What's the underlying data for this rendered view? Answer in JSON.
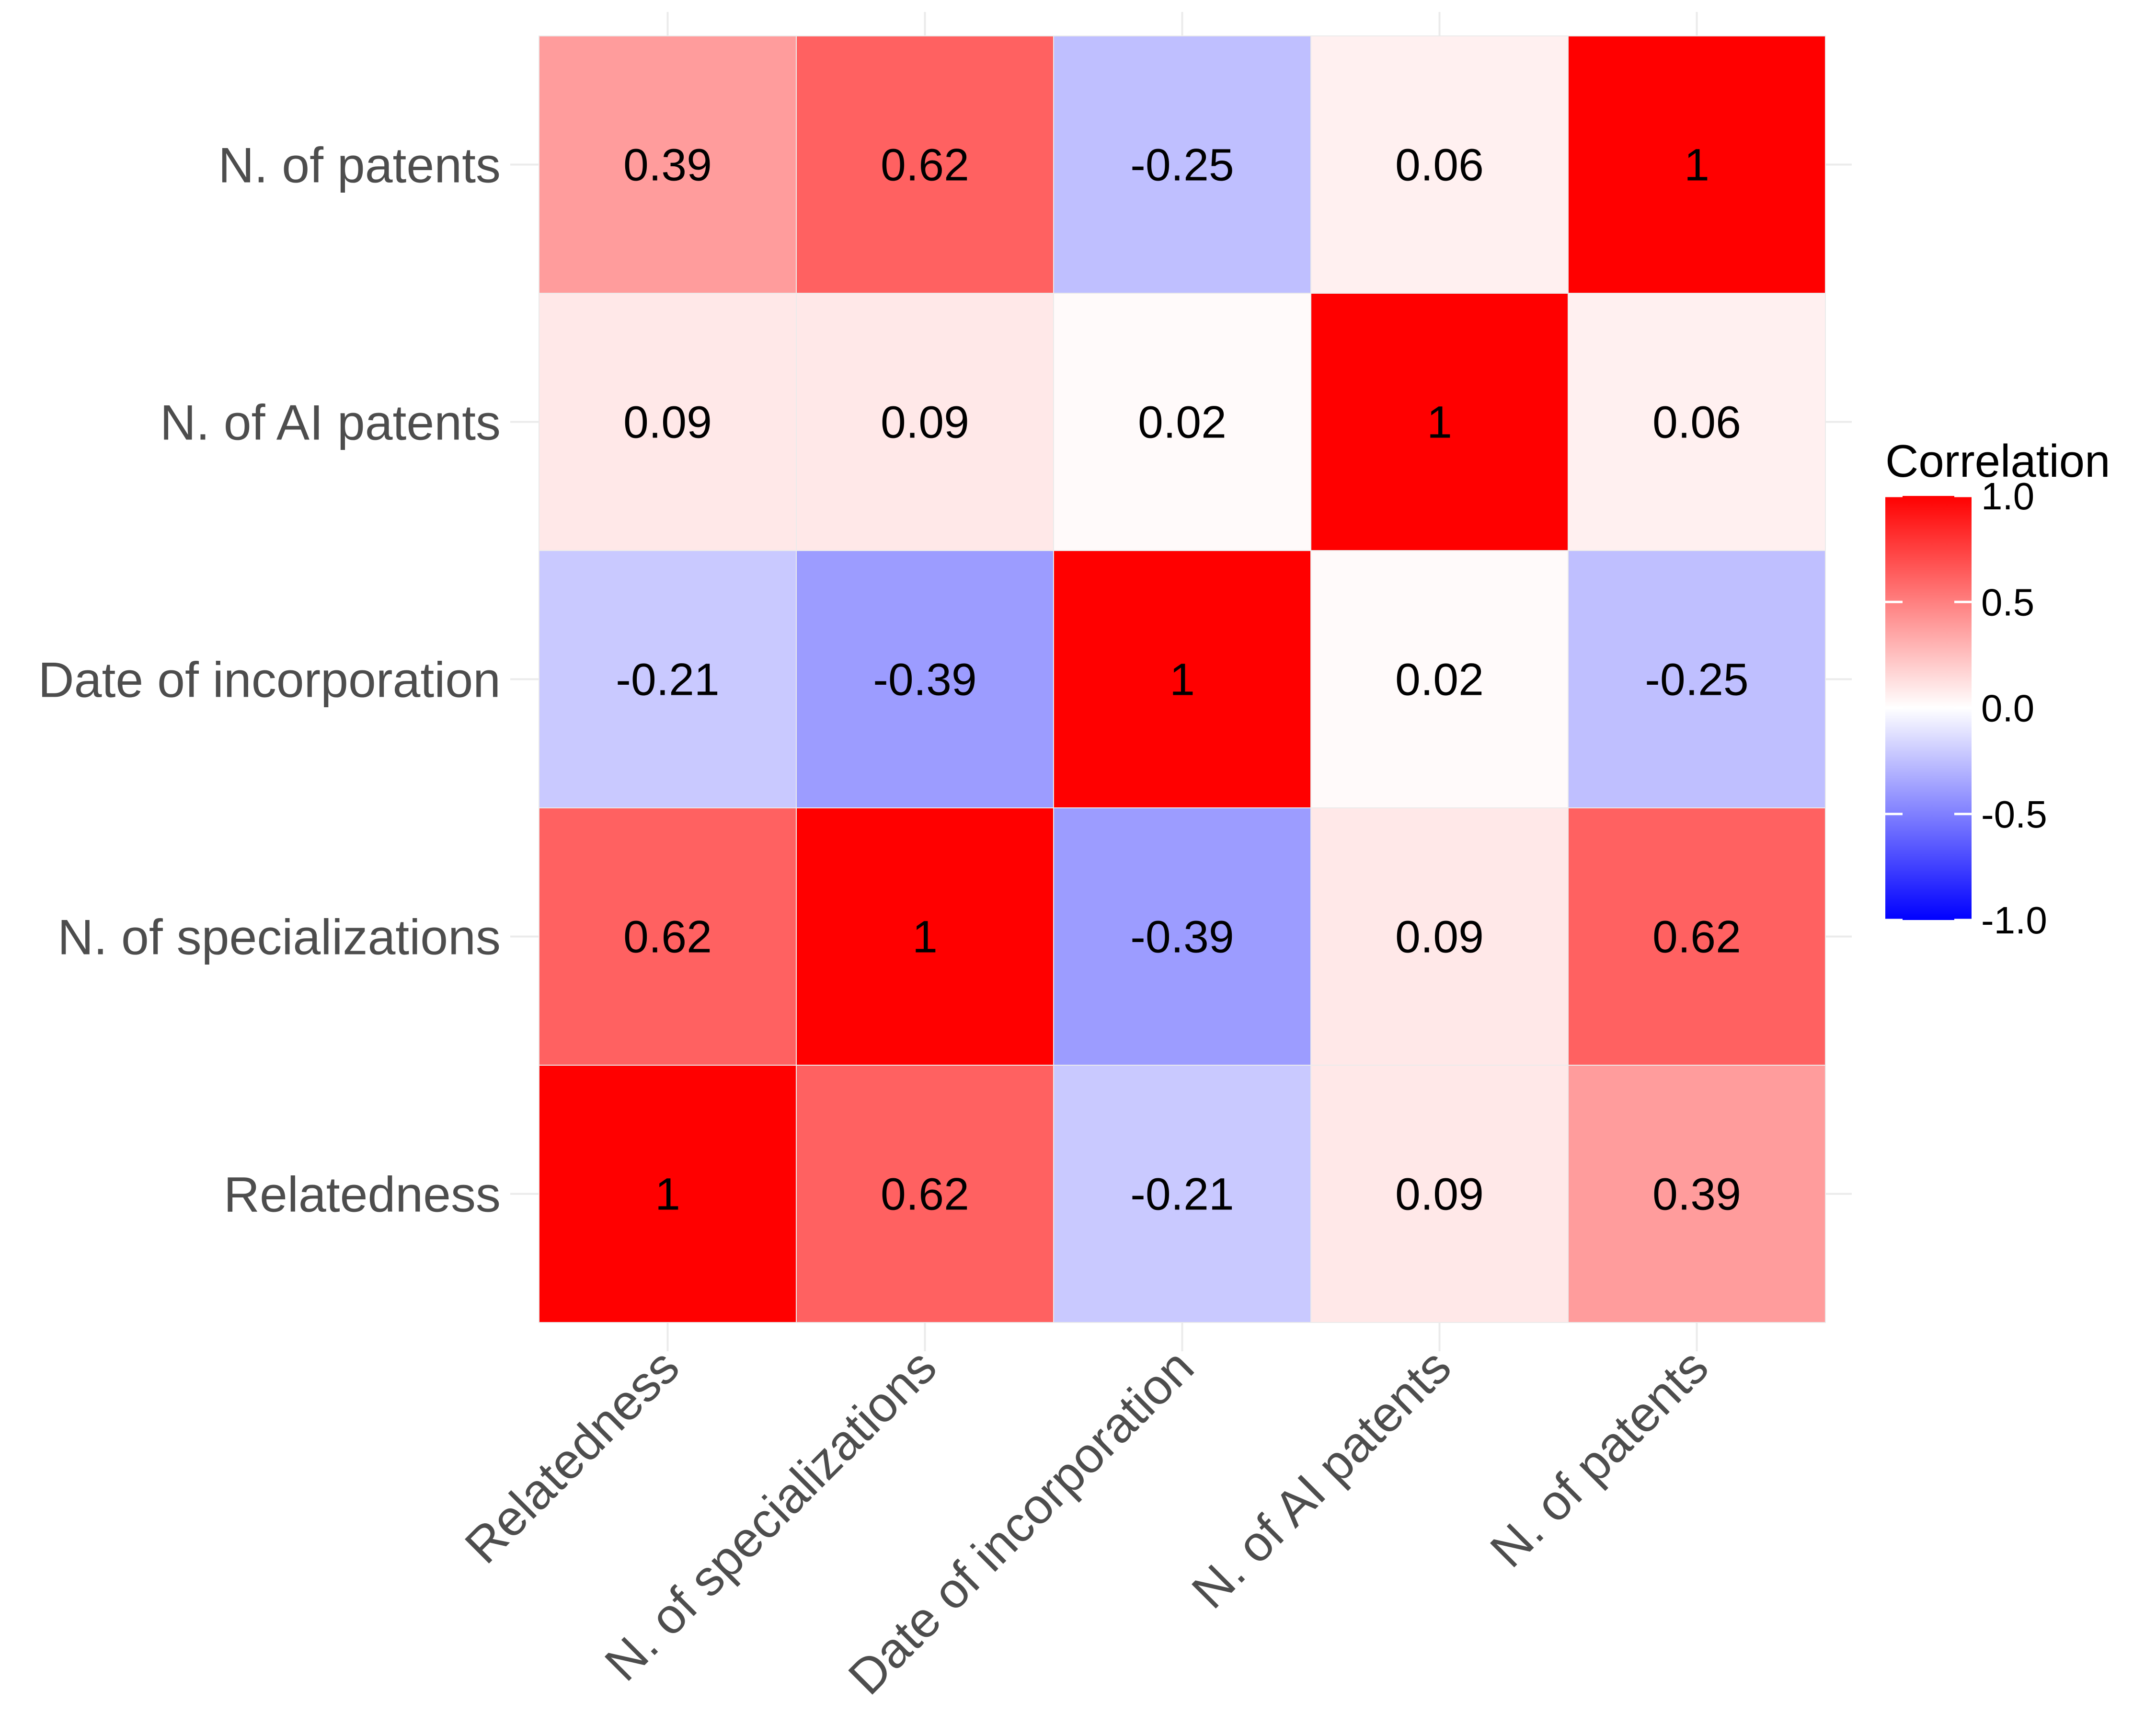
{
  "chart_data": {
    "type": "heatmap",
    "x_categories": [
      "Relatedness",
      "N. of specializations",
      "Date of incorporation",
      "N. of AI patents",
      "N. of patents"
    ],
    "y_categories": [
      "Relatedness",
      "N. of specializations",
      "Date of incorporation",
      "N. of AI patents",
      "N. of patents"
    ],
    "values": [
      [
        1,
        0.62,
        -0.21,
        0.09,
        0.39
      ],
      [
        0.62,
        1,
        -0.39,
        0.09,
        0.62
      ],
      [
        -0.21,
        -0.39,
        1,
        0.02,
        -0.25
      ],
      [
        0.09,
        0.09,
        0.02,
        1,
        0.06
      ],
      [
        0.39,
        0.62,
        -0.25,
        0.06,
        1
      ]
    ],
    "cell_labels": [
      [
        "1",
        "0.62",
        "-0.21",
        "0.09",
        "0.39"
      ],
      [
        "0.62",
        "1",
        "-0.39",
        "0.09",
        "0.62"
      ],
      [
        "-0.21",
        "-0.39",
        "1",
        "0.02",
        "-0.25"
      ],
      [
        "0.09",
        "0.09",
        "0.02",
        "1",
        "0.06"
      ],
      [
        "0.39",
        "0.62",
        "-0.25",
        "0.06",
        "1"
      ]
    ],
    "title": "",
    "xlabel": "",
    "ylabel": "",
    "legend": {
      "title": "Correlation",
      "placement": "right",
      "range": [
        -1,
        1
      ],
      "ticks": [
        1.0,
        0.5,
        0.0,
        -0.5,
        -1.0
      ],
      "tick_labels": [
        "1.0",
        "0.5",
        "0.0",
        "-0.5",
        "-1.0"
      ]
    },
    "colors": {
      "low": "#0000ff",
      "mid": "#ffffff",
      "high": "#ff0000"
    },
    "grid": true
  }
}
